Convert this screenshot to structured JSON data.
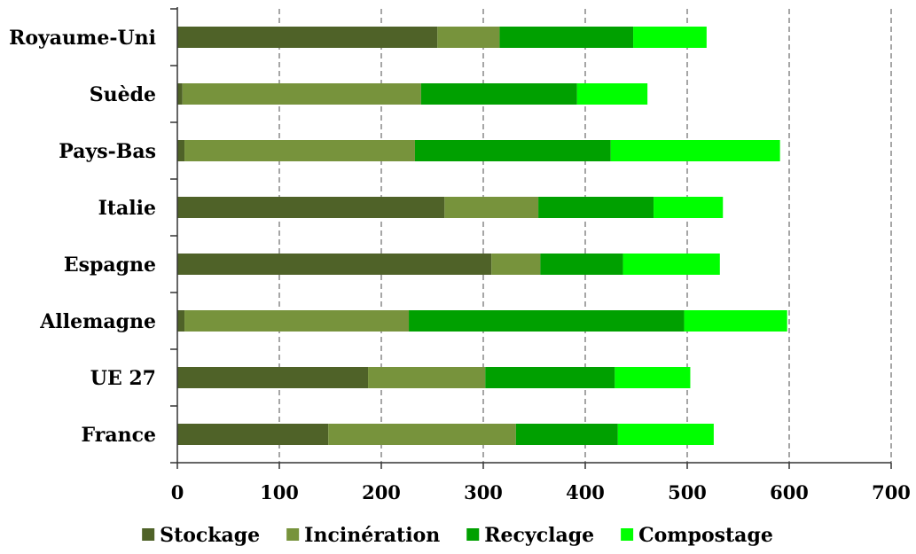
{
  "chart_data": {
    "type": "bar",
    "orientation": "horizontal",
    "stacked": true,
    "categories": [
      "France",
      "UE 27",
      "Allemagne",
      "Espagne",
      "Italie",
      "Pays-Bas",
      "Suède",
      "Royaume-Uni"
    ],
    "series": [
      {
        "name": "Stockage",
        "color": "#4f6228",
        "values": [
          148,
          187,
          7,
          308,
          262,
          7,
          5,
          255
        ]
      },
      {
        "name": "Incinération",
        "color": "#77933c",
        "values": [
          184,
          115,
          220,
          48,
          92,
          226,
          234,
          61
        ]
      },
      {
        "name": "Recyclage",
        "color": "#00a000",
        "values": [
          100,
          127,
          270,
          81,
          113,
          192,
          153,
          131
        ]
      },
      {
        "name": "Compostage",
        "color": "#00ff00",
        "values": [
          94,
          74,
          101,
          95,
          68,
          166,
          69,
          72
        ]
      }
    ],
    "xlim": [
      0,
      700
    ],
    "xticks": [
      0,
      100,
      200,
      300,
      400,
      500,
      600,
      700
    ],
    "grid": "vertical-dashed",
    "legend": "bottom",
    "title": "",
    "xlabel": "",
    "ylabel": ""
  }
}
